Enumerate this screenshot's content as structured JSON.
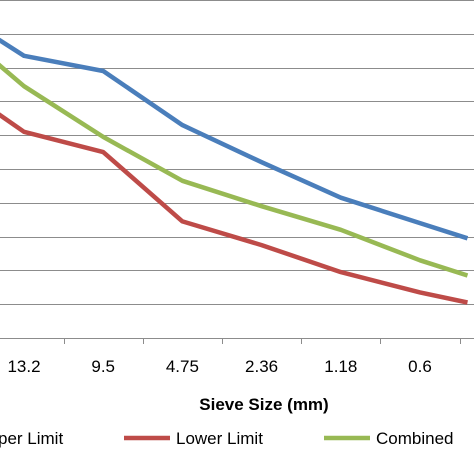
{
  "chart_data": {
    "type": "line",
    "title": "",
    "xlabel": "Sieve Size (mm)",
    "ylabel": "",
    "categories": [
      "13.2",
      "9.5",
      "4.75",
      "2.36",
      "1.18",
      "0.6"
    ],
    "ylim": [
      0,
      10
    ],
    "grid": true,
    "legend_position": "bottom",
    "series": [
      {
        "name": "Upper Limit",
        "color": "#4a7ebb",
        "x": [
          -0.4,
          0,
          1,
          2,
          3,
          4,
          5,
          5.6
        ],
        "values": [
          8.95,
          8.35,
          7.9,
          6.3,
          5.2,
          4.15,
          3.4,
          2.95
        ]
      },
      {
        "name": "Lower Limit",
        "color": "#be4b48",
        "x": [
          -0.4,
          0,
          1,
          2,
          3,
          4,
          5,
          5.6
        ],
        "values": [
          6.75,
          6.1,
          5.5,
          3.45,
          2.75,
          1.95,
          1.35,
          1.05
        ]
      },
      {
        "name": "Combined",
        "color": "#98b954",
        "x": [
          -0.4,
          0,
          1,
          2,
          3,
          4,
          5,
          5.6
        ],
        "values": [
          8.25,
          7.45,
          5.95,
          4.65,
          3.9,
          3.2,
          2.3,
          1.85
        ]
      }
    ],
    "legend": [
      "per Limit",
      "Lower Limit",
      "Combined"
    ]
  }
}
